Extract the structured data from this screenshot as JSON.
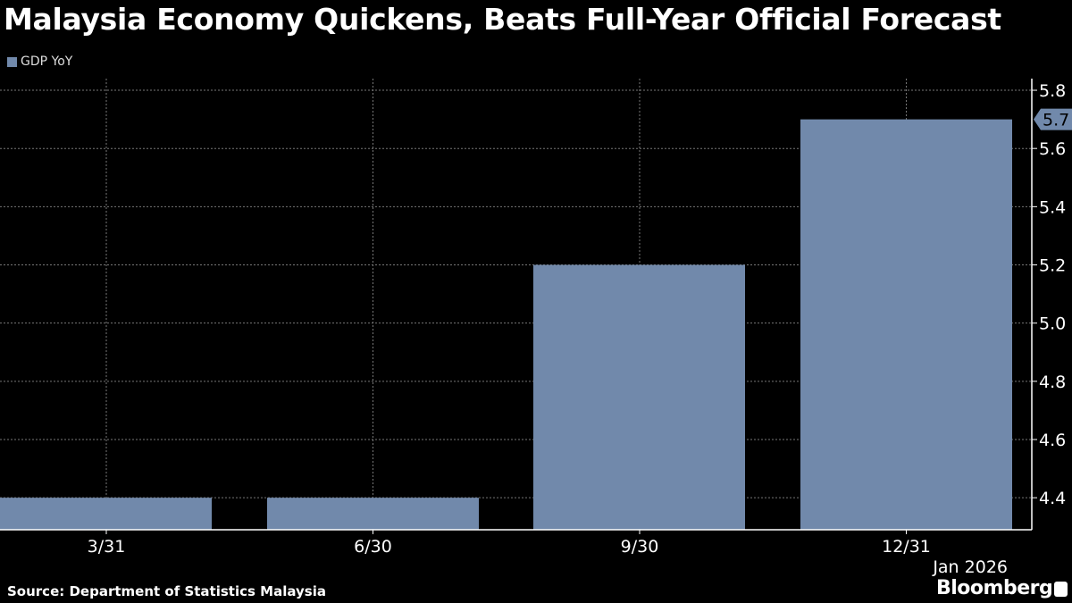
{
  "title": "Malaysia Economy Quickens, Beats Full-Year Official Forecast",
  "source": "Source: Department of Statistics Malaysia",
  "brand": "Bloomberg",
  "chart_data": {
    "type": "bar",
    "title": "Malaysia Economy Quickens, Beats Full-Year Official Forecast",
    "categories": [
      "3/31",
      "6/30",
      "9/30",
      "12/31"
    ],
    "x_sublabel": "Jan 2026",
    "series": [
      {
        "name": "GDP YoY",
        "values": [
          4.4,
          4.4,
          5.2,
          5.7
        ],
        "color": "#7189ab"
      }
    ],
    "last_value_label": "5.7",
    "yticks": [
      "4.4",
      "4.6",
      "4.8",
      "5.0",
      "5.2",
      "5.4",
      "5.6",
      "5.8"
    ],
    "ylim": [
      4.29,
      5.84
    ],
    "y_axis_side": "right",
    "grid": true,
    "legend": "top-left"
  }
}
